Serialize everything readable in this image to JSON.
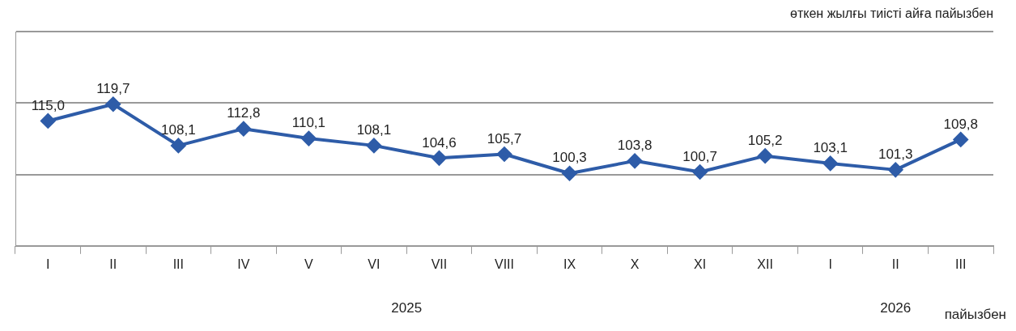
{
  "chart_data": {
    "type": "line",
    "subtitle": "өткен жылғы тиісті айға пайызбен",
    "categories": [
      "I",
      "II",
      "III",
      "IV",
      "V",
      "VI",
      "VII",
      "VIII",
      "IX",
      "X",
      "XI",
      "XII",
      "I",
      "II",
      "III"
    ],
    "values": [
      115.0,
      119.7,
      108.1,
      112.8,
      110.1,
      108.1,
      104.6,
      105.7,
      100.3,
      103.8,
      100.7,
      105.2,
      103.1,
      101.3,
      109.8
    ],
    "value_labels": [
      "115,0",
      "119,7",
      "108,1",
      "112,8",
      "110,1",
      "108,1",
      "104,6",
      "105,7",
      "100,3",
      "103,8",
      "100,7",
      "105,2",
      "103,1",
      "101,3",
      "109,8"
    ],
    "color": "#2e5ca8",
    "marker": "diamond",
    "grid": "y",
    "tick_labels": "x",
    "annotations": [
      "2025",
      "2026",
      "пайызбен"
    ]
  }
}
